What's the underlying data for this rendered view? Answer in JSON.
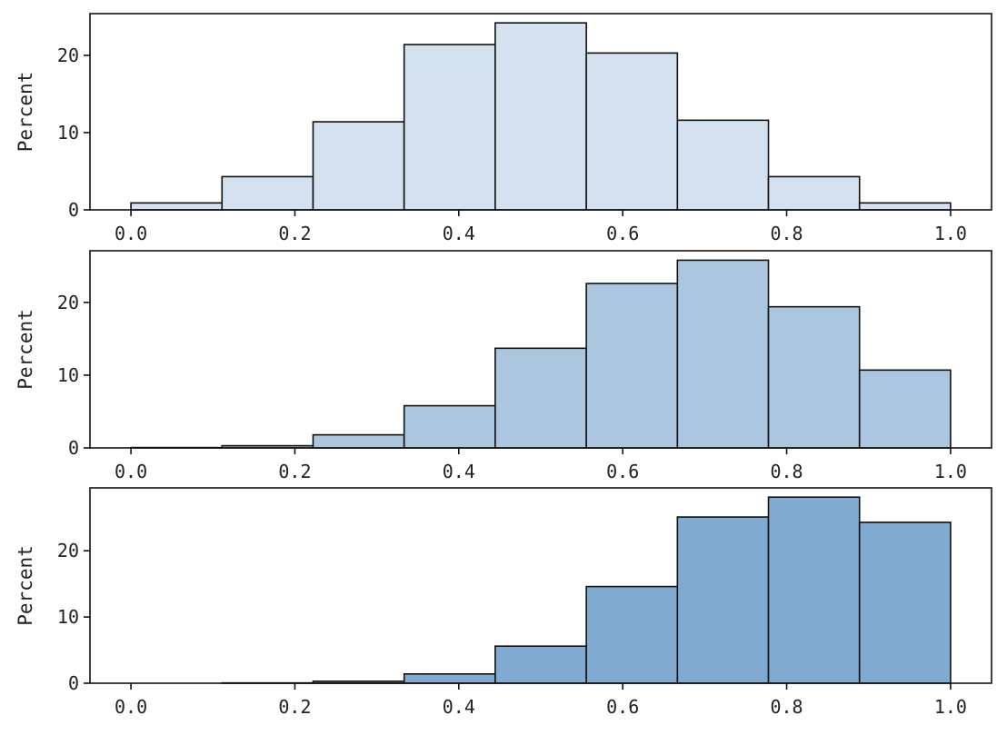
{
  "chart_data": [
    {
      "type": "bar",
      "bin_edges": [
        0.0,
        0.1111,
        0.2222,
        0.3333,
        0.4444,
        0.5556,
        0.6667,
        0.7778,
        0.8889,
        1.0
      ],
      "values": [
        0.9,
        4.3,
        11.4,
        21.4,
        24.2,
        20.3,
        11.6,
        4.3,
        0.9
      ],
      "xlabel": "",
      "ylabel": "Percent",
      "xticks": [
        0.0,
        0.2,
        0.4,
        0.6,
        0.8,
        1.0
      ],
      "xtick_labels": [
        "0.0",
        "0.2",
        "0.4",
        "0.6",
        "0.8",
        "1.0"
      ],
      "yticks": [
        0,
        10,
        20
      ],
      "ytick_labels": [
        "0",
        "10",
        "20"
      ],
      "xlim": [
        -0.05,
        1.05
      ],
      "ylim": [
        0,
        25.4
      ],
      "color": "#d4e2f0",
      "grid": false
    },
    {
      "type": "bar",
      "bin_edges": [
        0.0,
        0.1111,
        0.2222,
        0.3333,
        0.4444,
        0.5556,
        0.6667,
        0.7778,
        0.8889,
        1.0
      ],
      "values": [
        0.05,
        0.3,
        1.8,
        5.8,
        13.7,
        22.6,
        25.8,
        19.4,
        10.7
      ],
      "xlabel": "",
      "ylabel": "Percent",
      "xticks": [
        0.0,
        0.2,
        0.4,
        0.6,
        0.8,
        1.0
      ],
      "xtick_labels": [
        "0.0",
        "0.2",
        "0.4",
        "0.6",
        "0.8",
        "1.0"
      ],
      "yticks": [
        0,
        10,
        20
      ],
      "ytick_labels": [
        "0",
        "10",
        "20"
      ],
      "xlim": [
        -0.05,
        1.05
      ],
      "ylim": [
        0,
        27.1
      ],
      "color": "#abc6df",
      "grid": false
    },
    {
      "type": "bar",
      "bin_edges": [
        0.0,
        0.1111,
        0.2222,
        0.3333,
        0.4444,
        0.5556,
        0.6667,
        0.7778,
        0.8889,
        1.0
      ],
      "values": [
        0.0,
        0.05,
        0.3,
        1.4,
        5.6,
        14.6,
        25.1,
        28.1,
        24.3
      ],
      "xlabel": "",
      "ylabel": "Percent",
      "xticks": [
        0.0,
        0.2,
        0.4,
        0.6,
        0.8,
        1.0
      ],
      "xtick_labels": [
        "0.0",
        "0.2",
        "0.4",
        "0.6",
        "0.8",
        "1.0"
      ],
      "yticks": [
        0,
        10,
        20
      ],
      "ytick_labels": [
        "0",
        "10",
        "20"
      ],
      "xlim": [
        -0.05,
        1.05
      ],
      "ylim": [
        0,
        29.5
      ],
      "color": "#80aad0",
      "grid": false
    }
  ]
}
